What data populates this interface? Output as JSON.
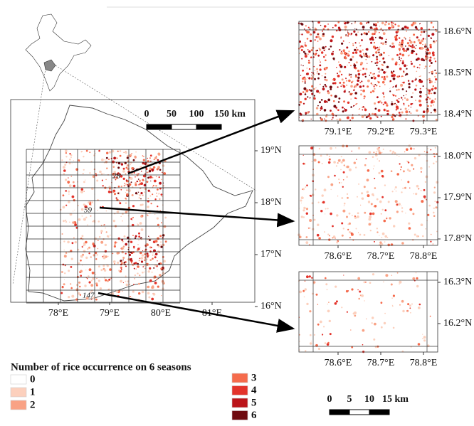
{
  "main_map": {
    "lon_labels": [
      "78°E",
      "79°E",
      "80°E",
      "81°E"
    ],
    "lat_labels": [
      "19°N",
      "18°N",
      "17°N",
      "16°N"
    ],
    "scale_bar": [
      "0",
      "50",
      "100",
      "150 km"
    ],
    "tiles": [
      "28",
      "59",
      "147"
    ]
  },
  "insets": [
    {
      "lon_labels": [
        "79.1°E",
        "79.2°E",
        "79.3°E"
      ],
      "lat_labels": [
        "18.6°N",
        "18.5°N",
        "18.4°N"
      ]
    },
    {
      "lon_labels": [
        "78.6°E",
        "78.7°E",
        "78.8°E"
      ],
      "lat_labels": [
        "18.0°N",
        "17.9°N",
        "17.8°N"
      ]
    },
    {
      "lon_labels": [
        "78.6°E",
        "78.7°E",
        "78.8°E"
      ],
      "lat_labels": [
        "16.3°N",
        "16.2°N"
      ]
    }
  ],
  "inset_scale_bar": [
    "0",
    "5",
    "10",
    "15 km"
  ],
  "legend": {
    "title": "Number of rice occurrence on 6 seasons",
    "items": [
      {
        "label": "0",
        "color": "#ffffff"
      },
      {
        "label": "1",
        "color": "#fcd0bd"
      },
      {
        "label": "2",
        "color": "#f9a285"
      },
      {
        "label": "3",
        "color": "#f56b4c"
      },
      {
        "label": "4",
        "color": "#e3332b"
      },
      {
        "label": "5",
        "color": "#bb1419"
      },
      {
        "label": "6",
        "color": "#6e0a0f"
      }
    ]
  }
}
